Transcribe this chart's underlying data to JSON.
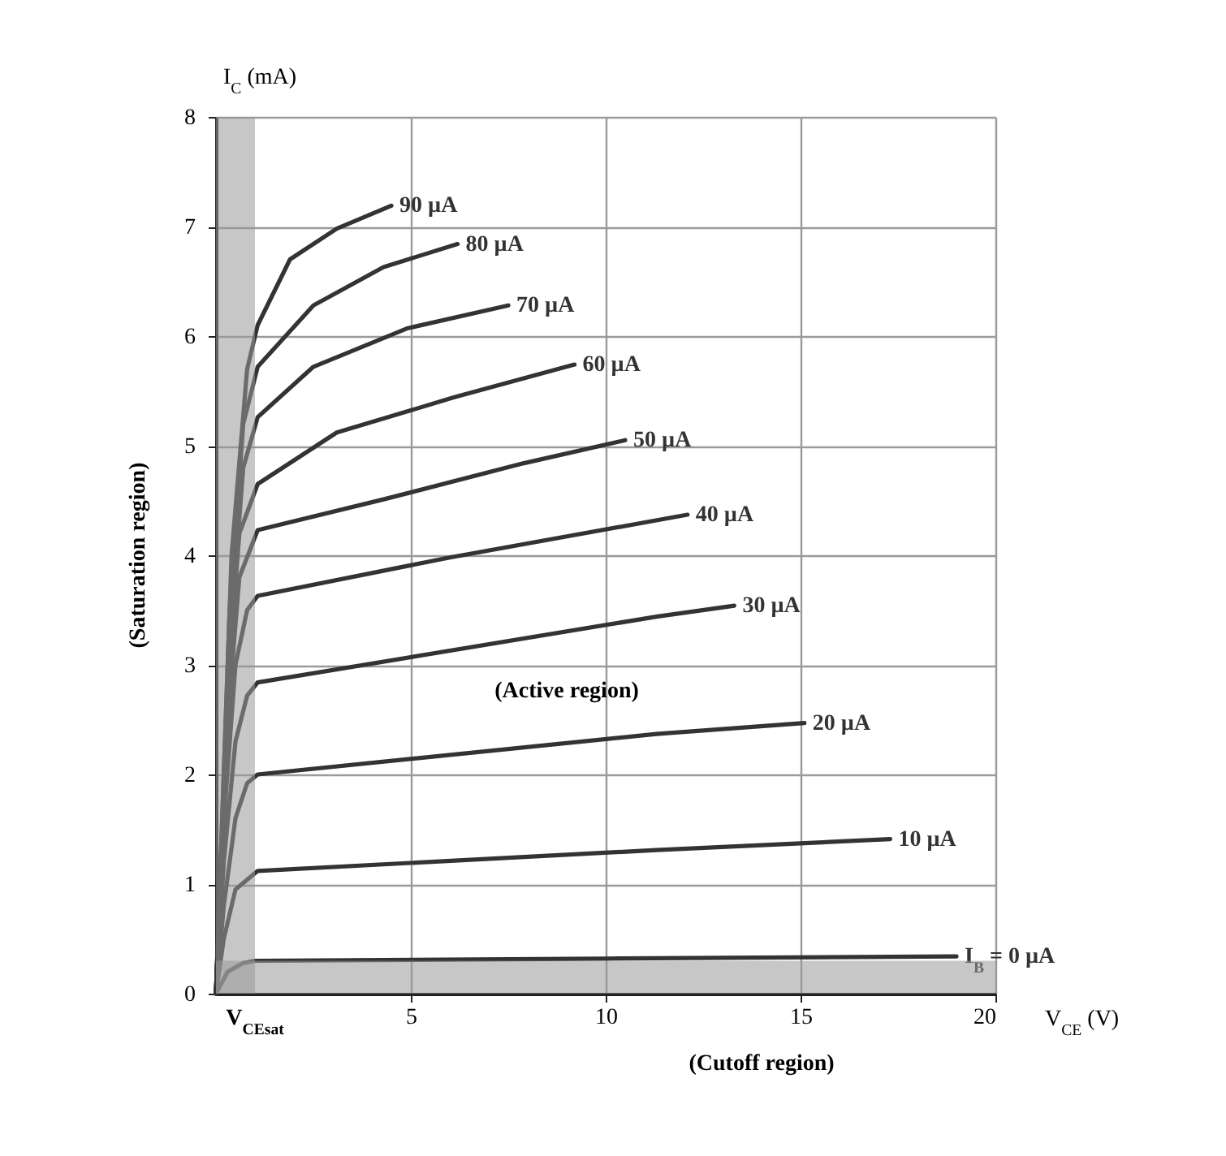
{
  "chart_data": {
    "type": "line",
    "xlabel": "V$_{CE}$ (V)",
    "ylabel": "I$_{C}$ (mA)",
    "xlim": [
      0,
      20
    ],
    "ylim": [
      0,
      8
    ],
    "xticks": [
      5,
      10,
      15,
      20
    ],
    "yticks": [
      0,
      1,
      2,
      3,
      4,
      5,
      6,
      7,
      8
    ],
    "grid": true,
    "marker": "none",
    "line_style": "solid",
    "series": [
      {
        "name": "90 µA",
        "color": "#333333",
        "x": [
          0,
          0.4,
          0.8,
          1.07,
          1.9,
          3.1,
          4.5
        ],
        "values": [
          0,
          4.0,
          5.7,
          6.1,
          6.7,
          6.98,
          7.19
        ]
      },
      {
        "name": "80 µA",
        "color": "#333333",
        "x": [
          0,
          0.35,
          0.7,
          1.07,
          2.5,
          4.3,
          6.2
        ],
        "values": [
          0,
          3.5,
          5.2,
          5.72,
          6.28,
          6.63,
          6.84
        ]
      },
      {
        "name": "70 µA",
        "color": "#333333",
        "x": [
          0,
          0.35,
          0.7,
          1.07,
          2.5,
          4.9,
          7.5
        ],
        "values": [
          0,
          3.2,
          4.8,
          5.26,
          5.72,
          6.07,
          6.28
        ]
      },
      {
        "name": "60 µA",
        "color": "#333333",
        "x": [
          0,
          0.3,
          0.6,
          1.07,
          3.1,
          6.1,
          9.2
        ],
        "values": [
          0,
          2.8,
          4.2,
          4.65,
          5.12,
          5.44,
          5.74
        ]
      },
      {
        "name": "50 µA",
        "color": "#333333",
        "x": [
          0,
          0.3,
          0.6,
          1.07,
          4.3,
          7.9,
          10.5
        ],
        "values": [
          0,
          2.5,
          3.8,
          4.23,
          4.51,
          4.84,
          5.05
        ]
      },
      {
        "name": "40 µA",
        "color": "#333333",
        "x": [
          0,
          0.25,
          0.5,
          0.8,
          1.07,
          6,
          12.1
        ],
        "values": [
          0,
          1.8,
          3.0,
          3.5,
          3.63,
          3.98,
          4.37
        ]
      },
      {
        "name": "30 µA",
        "color": "#333333",
        "x": [
          0,
          0.2,
          0.5,
          0.8,
          1.07,
          11.3,
          13.3
        ],
        "values": [
          0,
          1.2,
          2.3,
          2.72,
          2.84,
          3.44,
          3.54
        ]
      },
      {
        "name": "20 µA",
        "color": "#333333",
        "x": [
          0,
          0.2,
          0.5,
          0.8,
          1.07,
          11.3,
          15.1
        ],
        "values": [
          0,
          0.8,
          1.6,
          1.92,
          2.0,
          2.37,
          2.47
        ]
      },
      {
        "name": "10 µA",
        "color": "#333333",
        "x": [
          0,
          0.2,
          0.5,
          1.07,
          11.3,
          17.3
        ],
        "values": [
          0,
          0.5,
          0.95,
          1.12,
          1.31,
          1.41
        ]
      },
      {
        "name": "I$_{B}$ = 0 µA",
        "color": "#333333",
        "x": [
          0,
          0.3,
          0.7,
          1,
          10,
          19
        ],
        "values": [
          0,
          0.2,
          0.28,
          0.3,
          0.32,
          0.34
        ]
      }
    ],
    "bands": [
      {
        "axis": "x",
        "from": 0,
        "to": 1,
        "label": "(Saturation region)",
        "color": "#999999"
      },
      {
        "axis": "y",
        "from": 0,
        "to": 0.3,
        "label": "(Cutoff region)",
        "color": "#999999"
      }
    ],
    "annotations": [
      "(Active region)",
      {
        "text": "V$_{CE}$$_{sat}$",
        "x": 1,
        "y": 0
      }
    ]
  }
}
